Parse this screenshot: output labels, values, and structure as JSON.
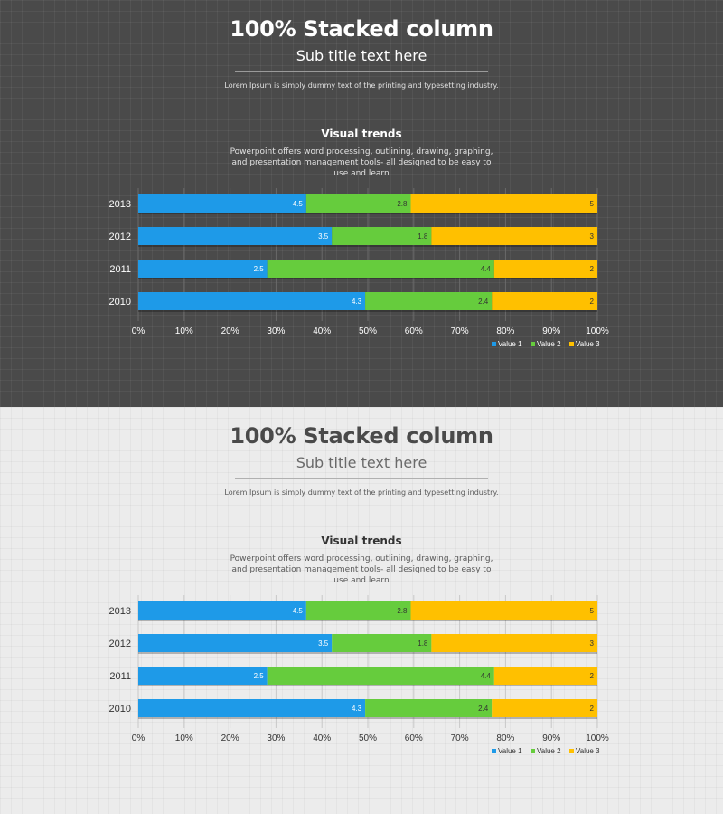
{
  "slides": [
    {
      "theme": "dark",
      "title": "100% Stacked column",
      "subtitle": "Sub title text here",
      "description": "Lorem Ipsum is simply dummy text of the printing and typesetting industry.",
      "section_title": "Visual trends",
      "section_desc": "Powerpoint offers word processing, outlining, drawing, graphing, and presentation management tools- all designed to be easy to use and learn"
    },
    {
      "theme": "light",
      "title": "100% Stacked column",
      "subtitle": "Sub title text here",
      "description": "Lorem Ipsum is simply dummy text of the printing and typesetting industry.",
      "section_title": "Visual trends",
      "section_desc": "Powerpoint offers word processing, outlining, drawing, graphing, and presentation management tools- all designed to be easy to use and learn"
    }
  ],
  "colors": {
    "value1": "#1e9ae8",
    "value2": "#66cc3d",
    "value3": "#ffc000",
    "dark_axis_text": "#ffffff",
    "light_axis_text": "#333333",
    "grid_dark": "#6a6a6a",
    "grid_light": "#c8c8c8"
  },
  "chart_data": [
    {
      "type": "bar",
      "stacked_percent": true,
      "orientation": "horizontal",
      "categories": [
        "2013",
        "2012",
        "2011",
        "2010"
      ],
      "series": [
        {
          "name": "Value 1",
          "values": [
            4.5,
            3.5,
            2.5,
            4.3
          ]
        },
        {
          "name": "Value 2",
          "values": [
            2.8,
            1.8,
            4.4,
            2.4
          ]
        },
        {
          "name": "Value 3",
          "values": [
            5,
            3,
            2,
            2
          ]
        }
      ],
      "x_ticks": [
        "0%",
        "10%",
        "20%",
        "30%",
        "40%",
        "50%",
        "60%",
        "70%",
        "80%",
        "90%",
        "100%"
      ],
      "xlim": [
        0,
        100
      ],
      "grid": true,
      "legend": "bottom-right"
    },
    {
      "type": "bar",
      "stacked_percent": true,
      "orientation": "horizontal",
      "categories": [
        "2013",
        "2012",
        "2011",
        "2010"
      ],
      "series": [
        {
          "name": "Value 1",
          "values": [
            4.5,
            3.5,
            2.5,
            4.3
          ]
        },
        {
          "name": "Value 2",
          "values": [
            2.8,
            1.8,
            4.4,
            2.4
          ]
        },
        {
          "name": "Value 3",
          "values": [
            5,
            3,
            2,
            2
          ]
        }
      ],
      "x_ticks": [
        "0%",
        "10%",
        "20%",
        "30%",
        "40%",
        "50%",
        "60%",
        "70%",
        "80%",
        "90%",
        "100%"
      ],
      "xlim": [
        0,
        100
      ],
      "grid": true,
      "legend": "bottom-right"
    }
  ]
}
